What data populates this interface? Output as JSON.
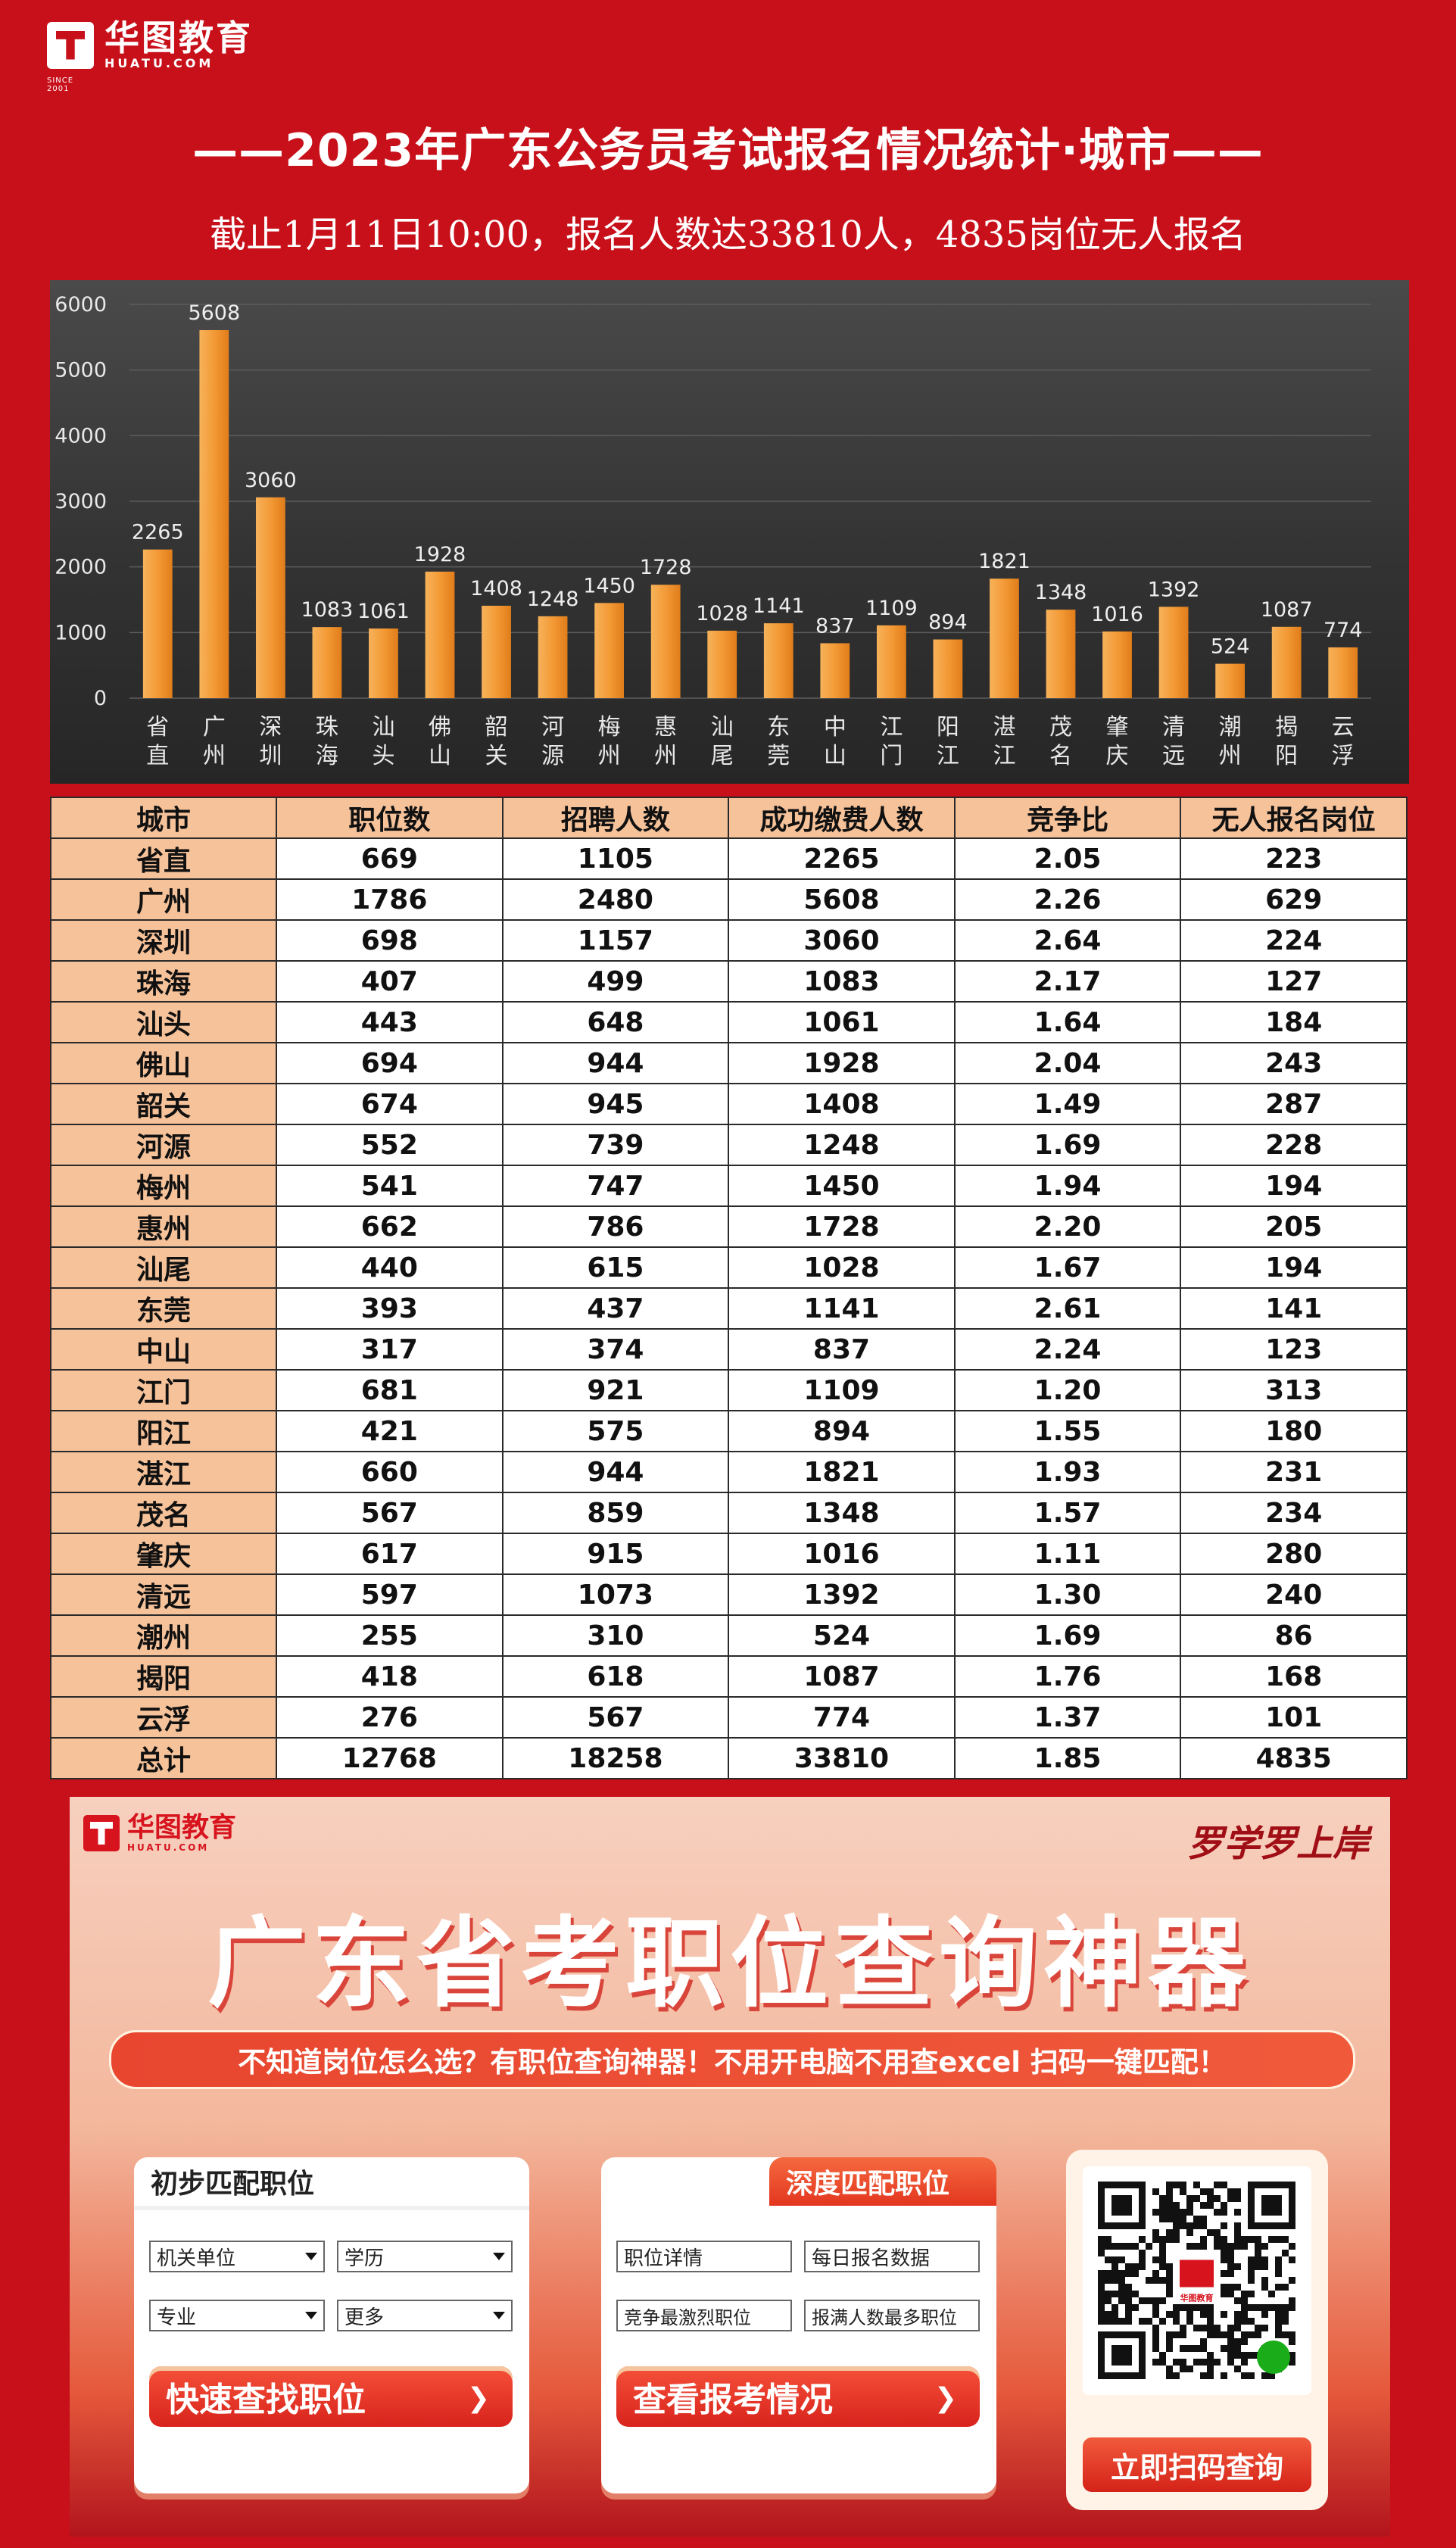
{
  "brand": {
    "name": "华图教育",
    "domain": "HUATU.COM",
    "since": "SINCE 2001"
  },
  "header": {
    "title": "——2023年广东公务员考试报名情况统计·城市——",
    "subtitle": "截止1月11日10:00，报名人数达33810人，4835岗位无人报名"
  },
  "chart_data": {
    "type": "bar",
    "categories": [
      "省直",
      "广州",
      "深圳",
      "珠海",
      "汕头",
      "佛山",
      "韶关",
      "河源",
      "梅州",
      "惠州",
      "汕尾",
      "东莞",
      "中山",
      "江门",
      "阳江",
      "湛江",
      "茂名",
      "肇庆",
      "清远",
      "潮州",
      "揭阳",
      "云浮"
    ],
    "values": [
      2265,
      5608,
      3060,
      1083,
      1061,
      1928,
      1408,
      1248,
      1450,
      1728,
      1028,
      1141,
      837,
      1109,
      894,
      1821,
      1348,
      1016,
      1392,
      524,
      1087,
      774
    ],
    "yticks": [
      0,
      1000,
      2000,
      3000,
      4000,
      5000,
      6000
    ],
    "ylim": [
      0,
      6000
    ],
    "grid": true,
    "bar_color": "#f39a36",
    "background": "#3a3a3a"
  },
  "table": {
    "headers": [
      "城市",
      "职位数",
      "招聘人数",
      "成功缴费人数",
      "竞争比",
      "无人报名岗位"
    ],
    "rows": [
      [
        "省直",
        "669",
        "1105",
        "2265",
        "2.05",
        "223"
      ],
      [
        "广州",
        "1786",
        "2480",
        "5608",
        "2.26",
        "629"
      ],
      [
        "深圳",
        "698",
        "1157",
        "3060",
        "2.64",
        "224"
      ],
      [
        "珠海",
        "407",
        "499",
        "1083",
        "2.17",
        "127"
      ],
      [
        "汕头",
        "443",
        "648",
        "1061",
        "1.64",
        "184"
      ],
      [
        "佛山",
        "694",
        "944",
        "1928",
        "2.04",
        "243"
      ],
      [
        "韶关",
        "674",
        "945",
        "1408",
        "1.49",
        "287"
      ],
      [
        "河源",
        "552",
        "739",
        "1248",
        "1.69",
        "228"
      ],
      [
        "梅州",
        "541",
        "747",
        "1450",
        "1.94",
        "194"
      ],
      [
        "惠州",
        "662",
        "786",
        "1728",
        "2.20",
        "205"
      ],
      [
        "汕尾",
        "440",
        "615",
        "1028",
        "1.67",
        "194"
      ],
      [
        "东莞",
        "393",
        "437",
        "1141",
        "2.61",
        "141"
      ],
      [
        "中山",
        "317",
        "374",
        "837",
        "2.24",
        "123"
      ],
      [
        "江门",
        "681",
        "921",
        "1109",
        "1.20",
        "313"
      ],
      [
        "阳江",
        "421",
        "575",
        "894",
        "1.55",
        "180"
      ],
      [
        "湛江",
        "660",
        "944",
        "1821",
        "1.93",
        "231"
      ],
      [
        "茂名",
        "567",
        "859",
        "1348",
        "1.57",
        "234"
      ],
      [
        "肇庆",
        "617",
        "915",
        "1016",
        "1.11",
        "280"
      ],
      [
        "清远",
        "597",
        "1073",
        "1392",
        "1.30",
        "240"
      ],
      [
        "潮州",
        "255",
        "310",
        "524",
        "1.69",
        "86"
      ],
      [
        "揭阳",
        "418",
        "618",
        "1087",
        "1.76",
        "168"
      ],
      [
        "云浮",
        "276",
        "567",
        "774",
        "1.37",
        "101"
      ],
      [
        "总计",
        "12768",
        "18258",
        "33810",
        "1.85",
        "4835"
      ]
    ]
  },
  "promo": {
    "slogan": "罗学罗上岸",
    "title": "广东省考职位查询神器",
    "ribbon": "不知道岗位怎么选？有职位查询神器！不用开电脑不用查excel 扫码一键匹配！",
    "card1": {
      "title": "初步匹配职位",
      "selects": [
        "机关单位",
        "学历",
        "专业",
        "更多"
      ],
      "button": "快速查找职位"
    },
    "card2": {
      "title": "深度匹配职位",
      "options": [
        "职位详情",
        "每日报名数据",
        "竞争最激烈职位",
        "报满人数最多职位"
      ],
      "button": "查看报考情况"
    },
    "qr": {
      "center_label": "华图教育",
      "button": "立即扫码查询"
    }
  }
}
